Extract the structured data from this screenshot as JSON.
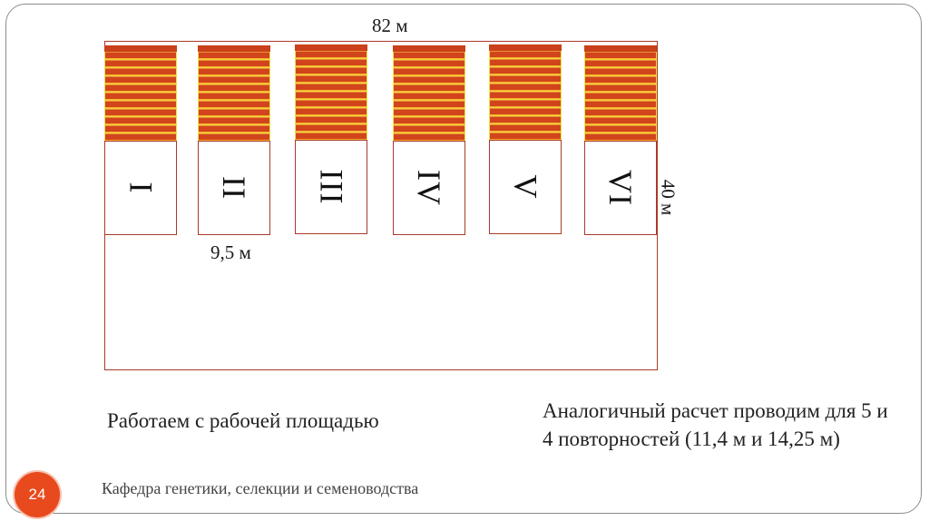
{
  "diagram": {
    "width_label": "82 м",
    "height_label": "40 м",
    "plot_width_label": "9,5 м",
    "blocks": [
      {
        "numeral": "I"
      },
      {
        "numeral": "II"
      },
      {
        "numeral": "III"
      },
      {
        "numeral": "IV"
      },
      {
        "numeral": "V"
      },
      {
        "numeral": "VI"
      }
    ],
    "colors": {
      "border": "#a83a2a",
      "stripe_main": "#d2441c",
      "stripe_line": "#f9e04a"
    }
  },
  "caption_left": "Работаем с рабочей площадью",
  "caption_right": "Аналогичный расчет проводим для 5 и 4 повторностей (11,4 м и 14,25 м)",
  "footer": {
    "page_number": "24",
    "department": "Кафедра генетики, селекции и семеноводства",
    "badge_color": "#e8491d"
  }
}
